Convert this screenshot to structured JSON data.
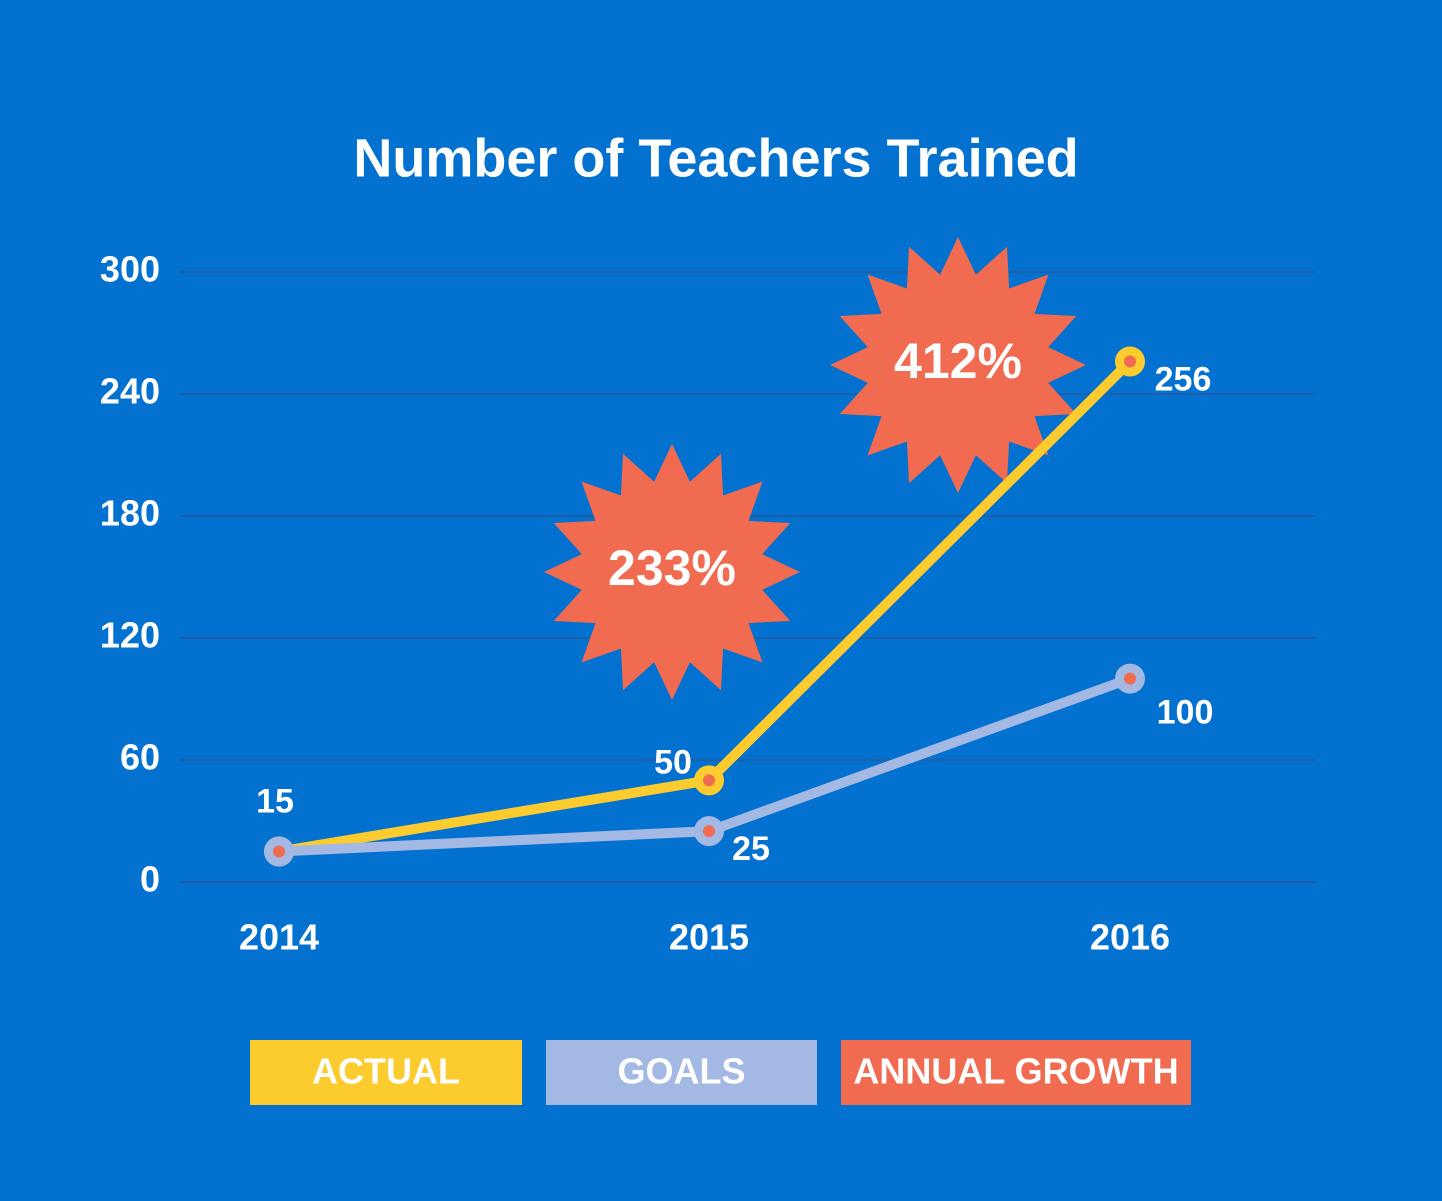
{
  "chart_data": {
    "type": "line",
    "title": "Number of Teachers Trained",
    "categories": [
      "2014",
      "2015",
      "2016"
    ],
    "series": [
      {
        "name": "ACTUAL",
        "color": "#fccb2e",
        "values": [
          15,
          50,
          256
        ],
        "labels_shown": [
          true,
          true,
          true
        ]
      },
      {
        "name": "GOALS",
        "color": "#a3b8e3",
        "values": [
          15,
          25,
          100
        ],
        "labels_shown": [
          false,
          true,
          true
        ]
      }
    ],
    "annotations": [
      {
        "text": "233%"
      },
      {
        "text": "412%"
      }
    ],
    "annotation_legend": "ANNUAL GROWTH",
    "annotation_color": "#f06b4f",
    "ylim": [
      0,
      300
    ],
    "yticks": [
      0,
      60,
      120,
      180,
      240,
      300
    ],
    "grid": true
  }
}
